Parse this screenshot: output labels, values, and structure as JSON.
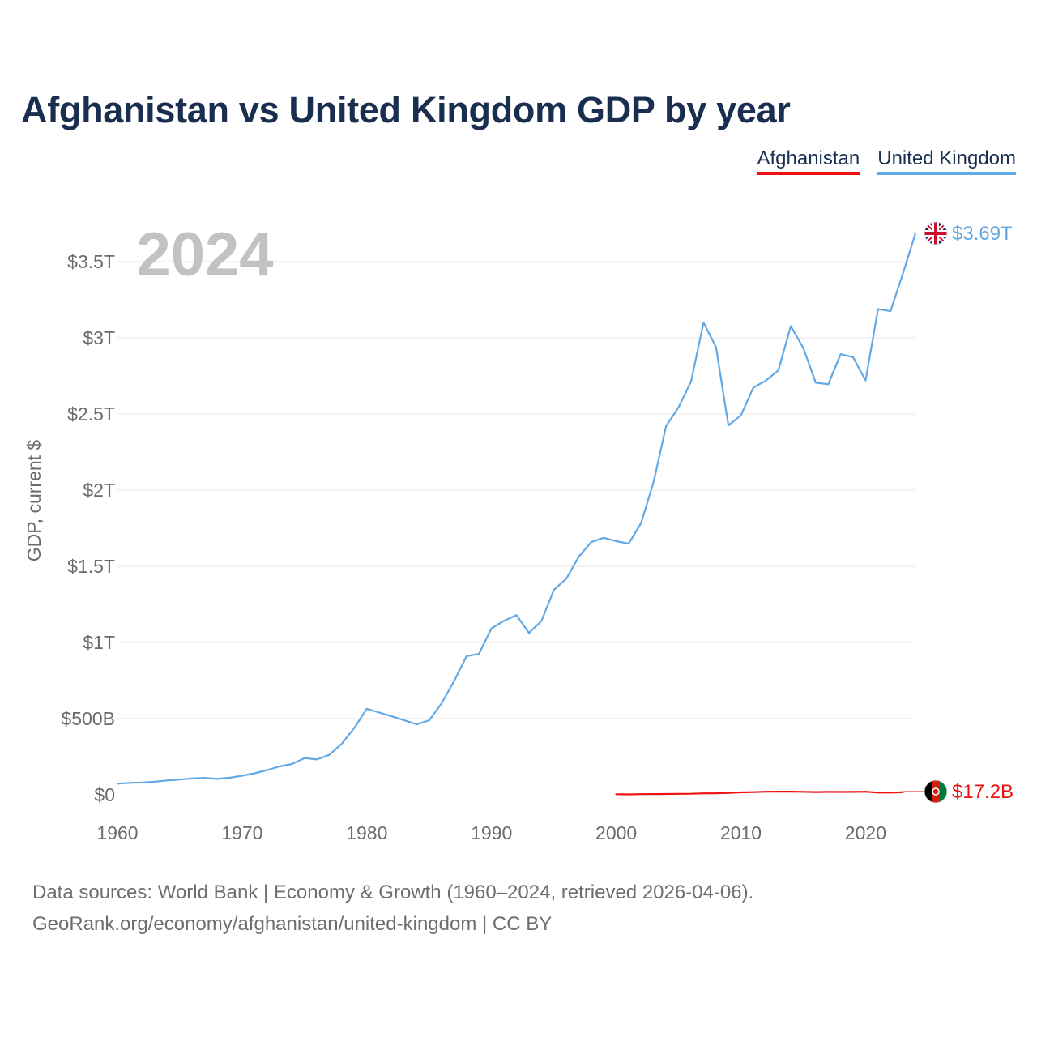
{
  "title": "Afghanistan vs United Kingdom GDP by year",
  "legend": [
    {
      "label": "Afghanistan",
      "color": "#ee1111"
    },
    {
      "label": "United Kingdom",
      "color": "#62a8e5"
    }
  ],
  "footer": {
    "line1": "Data sources: World Bank | Economy & Growth (1960–2024, retrieved 2026-04-06).",
    "line2": "GeoRank.org/economy/afghanistan/united-kingdom | CC BY"
  },
  "chart_data": {
    "type": "line",
    "title": "Afghanistan vs United Kingdom GDP by year",
    "year_label": "2024",
    "ylabel": "GDP, current $",
    "xlabel": "",
    "xlim": [
      1960,
      2024
    ],
    "ylim": [
      0,
      3.75
    ],
    "y_unit": "trillion USD",
    "x_ticks": [
      1960,
      1970,
      1980,
      1990,
      2000,
      2010,
      2020
    ],
    "x_tick_labels": [
      "1960",
      "1970",
      "1980",
      "1990",
      "2000",
      "2010",
      "2020"
    ],
    "y_ticks": [
      0,
      0.5,
      1,
      1.5,
      2,
      2.5,
      3,
      3.5
    ],
    "y_tick_labels": [
      "$0",
      "$500B",
      "$1T",
      "$1.5T",
      "$2T",
      "$2.5T",
      "$3T",
      "$3.5T"
    ],
    "grid": true,
    "series": [
      {
        "name": "United Kingdom",
        "color": "#62a8e5",
        "end_label": "$3.69T",
        "flag": "uk-flag",
        "x": [
          1960,
          1961,
          1962,
          1963,
          1964,
          1965,
          1966,
          1967,
          1968,
          1969,
          1970,
          1971,
          1972,
          1973,
          1974,
          1975,
          1976,
          1977,
          1978,
          1979,
          1980,
          1981,
          1982,
          1983,
          1984,
          1985,
          1986,
          1987,
          1988,
          1989,
          1990,
          1991,
          1992,
          1993,
          1994,
          1995,
          1996,
          1997,
          1998,
          1999,
          2000,
          2001,
          2002,
          2003,
          2004,
          2005,
          2006,
          2007,
          2008,
          2009,
          2010,
          2011,
          2012,
          2013,
          2014,
          2015,
          2016,
          2017,
          2018,
          2019,
          2020,
          2021,
          2022,
          2023,
          2024
        ],
        "values": [
          0.073,
          0.078,
          0.081,
          0.086,
          0.094,
          0.1,
          0.107,
          0.111,
          0.104,
          0.112,
          0.125,
          0.141,
          0.162,
          0.186,
          0.202,
          0.241,
          0.232,
          0.263,
          0.336,
          0.439,
          0.565,
          0.54,
          0.515,
          0.489,
          0.462,
          0.489,
          0.601,
          0.746,
          0.91,
          0.926,
          1.093,
          1.142,
          1.179,
          1.062,
          1.141,
          1.345,
          1.419,
          1.564,
          1.659,
          1.687,
          1.665,
          1.649,
          1.785,
          2.054,
          2.421,
          2.544,
          2.713,
          3.1,
          2.94,
          2.425,
          2.491,
          2.674,
          2.719,
          2.786,
          3.077,
          2.934,
          2.705,
          2.695,
          2.893,
          2.873,
          2.72,
          3.188,
          3.175,
          3.424,
          3.686
        ]
      },
      {
        "name": "Afghanistan",
        "color": "#ee1111",
        "end_label": "$17.2B",
        "flag": "af-flag",
        "x": [
          2000,
          2001,
          2002,
          2003,
          2004,
          2005,
          2006,
          2007,
          2008,
          2009,
          2010,
          2011,
          2012,
          2013,
          2014,
          2015,
          2016,
          2017,
          2018,
          2019,
          2020,
          2021,
          2022,
          2023
        ],
        "values": [
          0.0037,
          0.0025,
          0.0041,
          0.0046,
          0.0054,
          0.0062,
          0.0069,
          0.0097,
          0.0101,
          0.0125,
          0.0159,
          0.0178,
          0.02,
          0.0206,
          0.0205,
          0.0199,
          0.0181,
          0.0189,
          0.0184,
          0.0189,
          0.0201,
          0.0145,
          0.0145,
          0.0172
        ]
      }
    ]
  }
}
